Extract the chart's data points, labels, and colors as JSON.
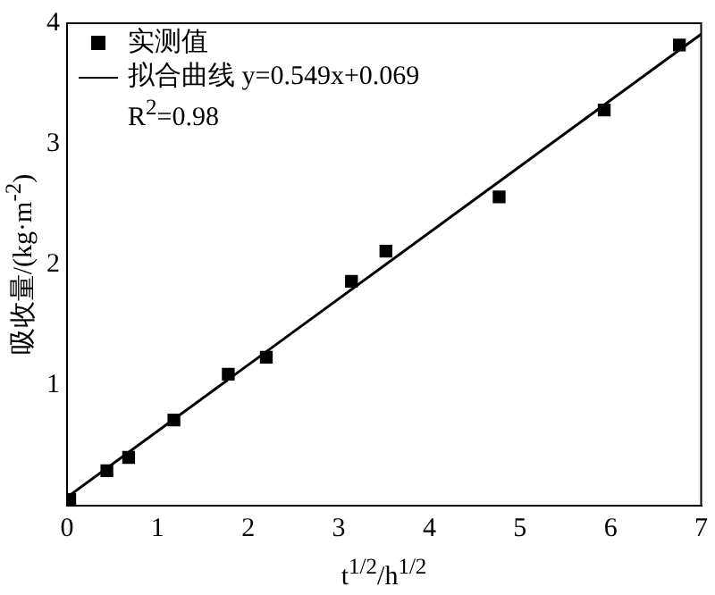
{
  "chart_data": {
    "type": "scatter",
    "xlabel": "t$^{1/2}$/h$^{1/2}$",
    "ylabel": "吸收量/(kg·m$^{-2}$)",
    "xlim": [
      0,
      7
    ],
    "ylim": [
      0,
      4
    ],
    "xticks": [
      0,
      1,
      2,
      3,
      4,
      5,
      6,
      7
    ],
    "yticks": [
      1,
      2,
      3,
      4,
      {
        "value": 0,
        "label": null
      }
    ],
    "grid": false,
    "legend": "top left",
    "marker": "square",
    "annotations": [
      "R$^{2}$=0.98"
    ],
    "series": [
      {
        "name": "实测值",
        "color": "#000000",
        "x": [
          0.03,
          0.44,
          0.68,
          1.18,
          1.78,
          2.2,
          3.14,
          3.52,
          4.77,
          5.93,
          6.76
        ],
        "values": [
          0.05,
          0.29,
          0.4,
          0.71,
          1.09,
          1.23,
          1.86,
          2.11,
          2.56,
          3.28,
          3.82
        ]
      },
      {
        "name": "拟合曲线 y=0.549x+0.069",
        "type": "line",
        "color": "#000000",
        "marker": "none",
        "line_style": "solid",
        "x": [
          0,
          7
        ],
        "values": [
          0.07,
          3.91
        ]
      }
    ]
  }
}
